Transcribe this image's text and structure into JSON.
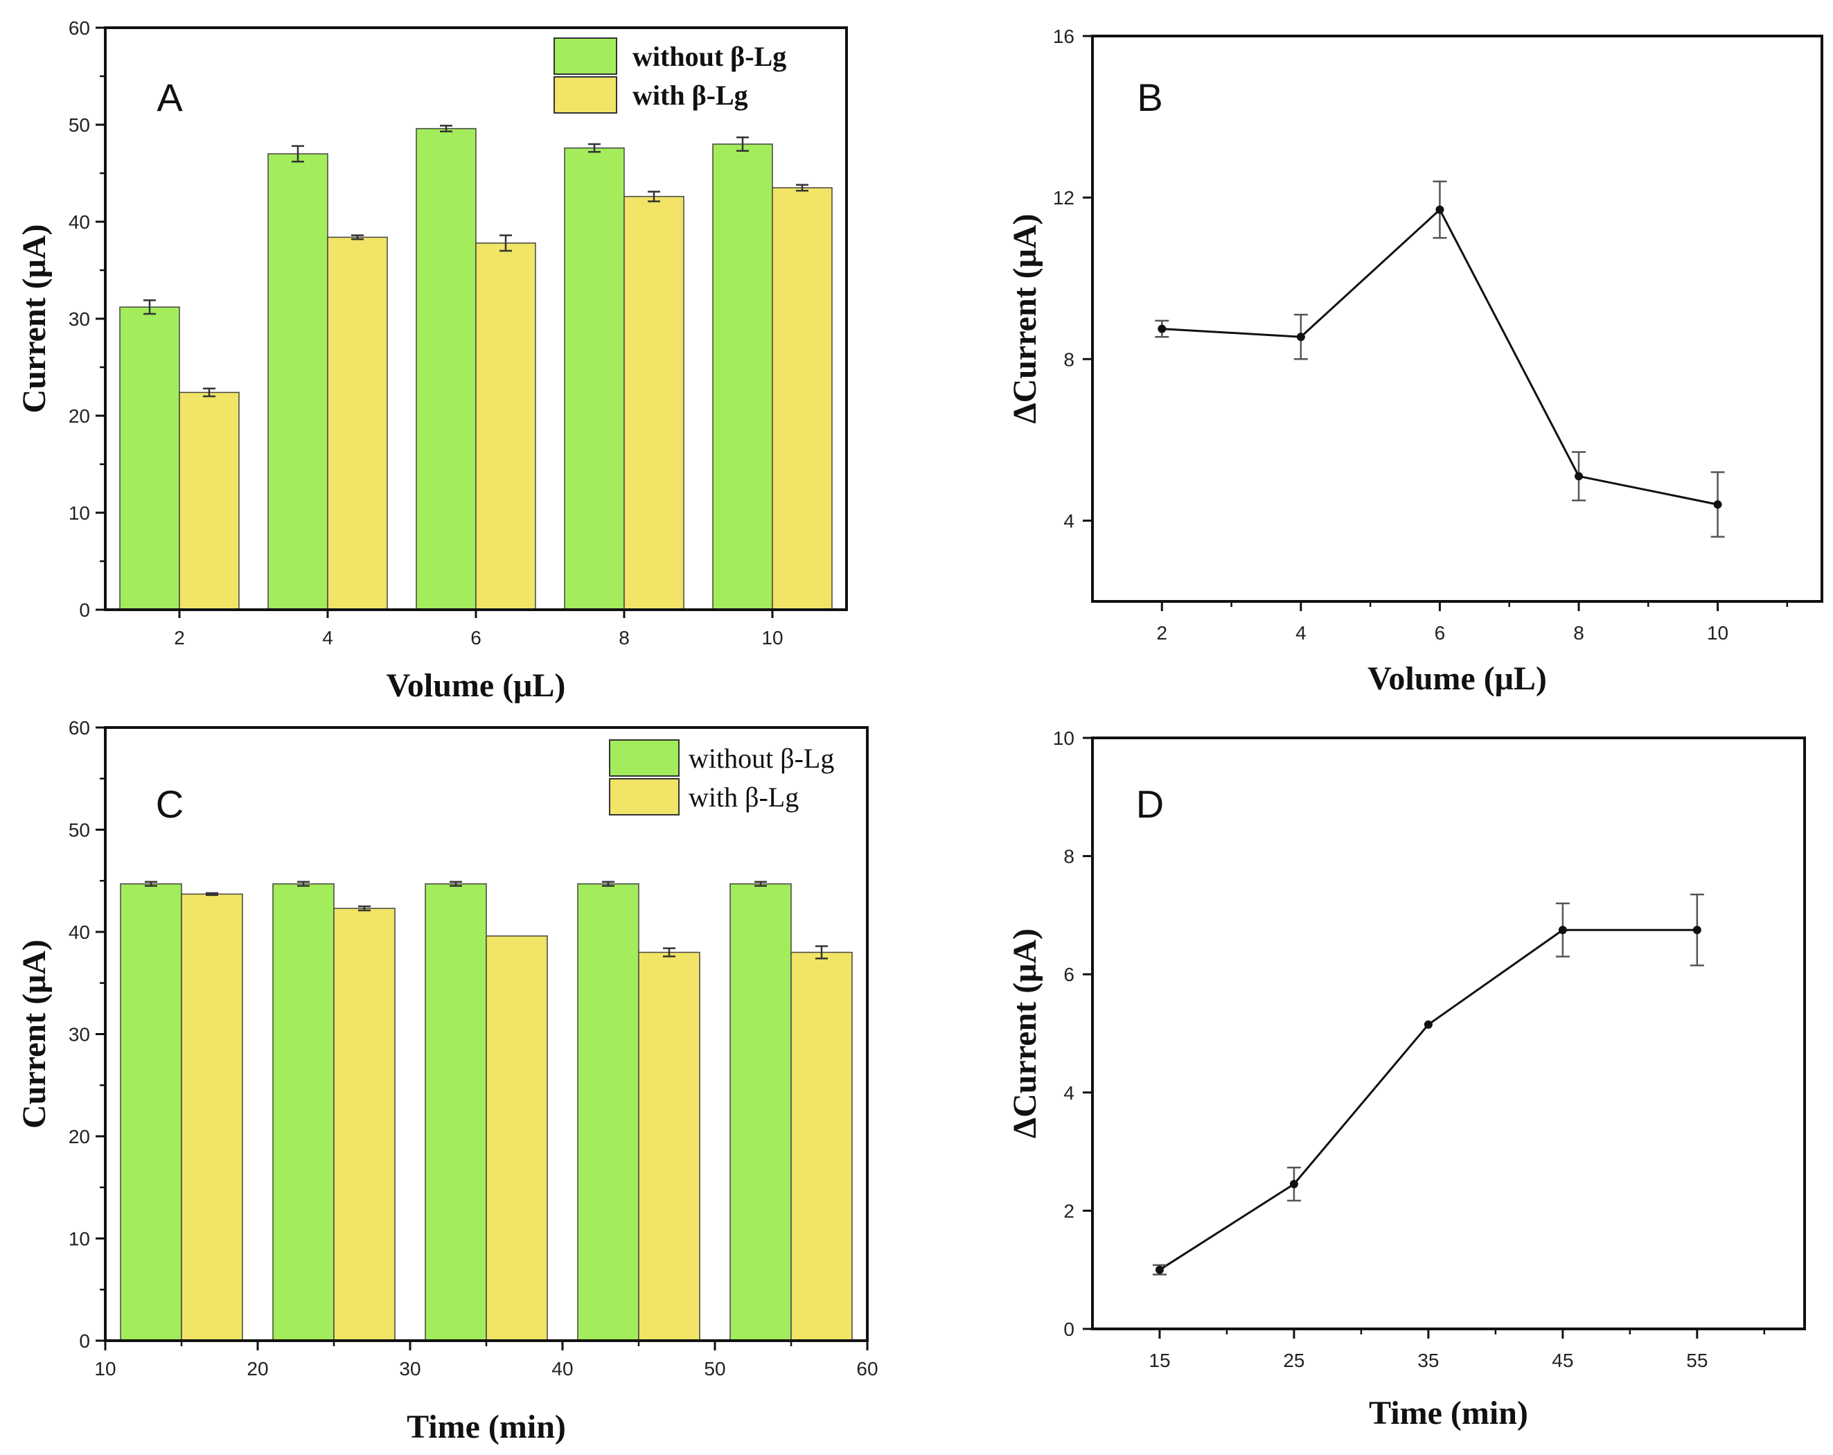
{
  "colors": {
    "green": "#a3ec5c",
    "yellow": "#f1e466",
    "axis": "#111111"
  },
  "chart_data": [
    {
      "id": "A",
      "type": "bar",
      "panel_label": "A",
      "categories": [
        "2",
        "4",
        "6",
        "8",
        "10"
      ],
      "series": [
        {
          "name": "without β-Lg",
          "values": [
            31.2,
            47.0,
            49.6,
            47.6,
            48.0
          ],
          "errors": [
            0.7,
            0.8,
            0.3,
            0.4,
            0.7
          ]
        },
        {
          "name": "with β-Lg",
          "values": [
            22.4,
            38.4,
            37.8,
            42.6,
            43.5
          ],
          "errors": [
            0.4,
            0.2,
            0.8,
            0.5,
            0.3
          ]
        }
      ],
      "xlabel": "Volume (μL)",
      "ylabel": "Current (μA)",
      "ylim": [
        0,
        60
      ],
      "yticks": [
        "0",
        "10",
        "20",
        "30",
        "40",
        "50",
        "60"
      ],
      "legend": "top-right",
      "legend_style": "bold"
    },
    {
      "id": "B",
      "type": "line",
      "panel_label": "B",
      "x": [
        2,
        4,
        6,
        8,
        10
      ],
      "xticks": [
        "2",
        "4",
        "6",
        "8",
        "10"
      ],
      "y": [
        8.75,
        8.55,
        11.7,
        5.1,
        4.4
      ],
      "errors": [
        0.2,
        0.55,
        0.7,
        0.6,
        0.8
      ],
      "xlabel": "Volume (μL)",
      "ylabel": "ΔCurrent (μA)",
      "xlim": [
        1,
        11.5
      ],
      "ylim": [
        2,
        16
      ],
      "yticks": [
        "4",
        "8",
        "12",
        "16"
      ]
    },
    {
      "id": "C",
      "type": "bar",
      "panel_label": "C",
      "categories": [
        "",
        "",
        "",
        "",
        ""
      ],
      "series": [
        {
          "name": "without β-Lg",
          "values": [
            44.7,
            44.7,
            44.7,
            44.7,
            44.7
          ],
          "errors": [
            0.2,
            0.2,
            0.2,
            0.2,
            0.2
          ]
        },
        {
          "name": "with β-Lg",
          "values": [
            43.7,
            42.3,
            39.6,
            38.0,
            38.0
          ],
          "errors": [
            0.1,
            0.2,
            0.0,
            0.4,
            0.6
          ]
        }
      ],
      "bar_centers": [
        13,
        17,
        23,
        27,
        33,
        37,
        43,
        47,
        53,
        57
      ],
      "xlabel": "Time (min)",
      "ylabel": "Current (μA)",
      "xlim": [
        10,
        60
      ],
      "xticks": [
        "10",
        "20",
        "30",
        "40",
        "50",
        "60"
      ],
      "ylim": [
        0,
        60
      ],
      "yticks": [
        "0",
        "10",
        "20",
        "30",
        "40",
        "50",
        "60"
      ],
      "legend": "top-right",
      "legend_style": "plain"
    },
    {
      "id": "D",
      "type": "line",
      "panel_label": "D",
      "x": [
        15,
        25,
        35,
        45,
        55
      ],
      "xticks": [
        "15",
        "25",
        "35",
        "45",
        "55"
      ],
      "y": [
        1.0,
        2.45,
        5.15,
        6.75,
        6.75
      ],
      "errors": [
        0.08,
        0.28,
        0.0,
        0.45,
        0.6
      ],
      "xlabel": "Time (min)",
      "ylabel": "ΔCurrent (μA)",
      "xlim": [
        10,
        63
      ],
      "ylim": [
        0,
        10
      ],
      "yticks": [
        "0",
        "2",
        "4",
        "6",
        "8",
        "10"
      ]
    }
  ]
}
